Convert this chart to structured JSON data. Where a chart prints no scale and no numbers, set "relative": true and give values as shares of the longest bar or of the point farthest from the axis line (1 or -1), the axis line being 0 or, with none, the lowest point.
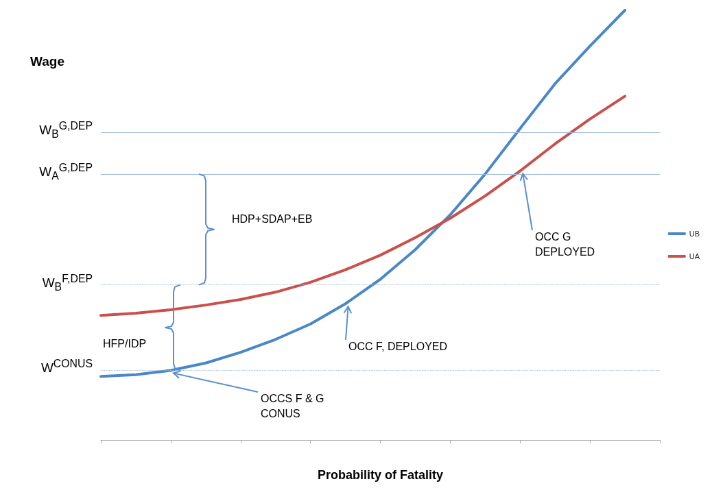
{
  "chart_data": {
    "type": "line",
    "relative": true,
    "xlabel": "Probability of Fatality",
    "ylabel": "Wage",
    "categories": [
      null,
      null,
      null,
      null,
      null,
      null,
      null,
      null,
      null,
      null,
      null,
      null,
      null,
      null,
      null,
      null,
      null
    ],
    "series": [
      {
        "name": "UB",
        "color": "#4a87c9",
        "values": [
          0.148,
          0.152,
          0.162,
          0.179,
          0.204,
          0.234,
          0.27,
          0.317,
          0.374,
          0.443,
          0.524,
          0.619,
          0.725,
          0.829,
          0.917,
          1.0,
          null
        ]
      },
      {
        "name": "UA",
        "color": "#c9504b",
        "values": [
          0.29,
          0.295,
          0.303,
          0.314,
          0.327,
          0.344,
          0.367,
          0.396,
          0.43,
          0.471,
          0.516,
          0.568,
          0.626,
          0.689,
          0.747,
          0.8,
          null
        ]
      }
    ],
    "ref_lines": [
      {
        "axis": "y",
        "value": 0.716,
        "label": "W$_{B}$$^{G,DEP}$",
        "color": "#9dbbdf",
        "line_style": "solid"
      },
      {
        "axis": "y",
        "value": 0.619,
        "label": "W$_{A}$$^{G,DEP}$",
        "color": "#9dbbdf",
        "line_style": "solid"
      },
      {
        "axis": "y",
        "value": 0.361,
        "label": "W$_{B}$$^{F,DEP}$",
        "color": "#9dbbdf",
        "line_style": "dotted"
      },
      {
        "axis": "y",
        "value": 0.162,
        "label": "W$^{CONUS}$",
        "color": "#9dbbdf",
        "line_style": "dotted"
      }
    ],
    "annotations": [
      "HDP+SDAP+EB",
      "HFP/IDP",
      "OCC G DEPLOYED",
      "OCC F, DEPLOYED",
      "OCCS F & G CONUS"
    ],
    "legend": "right",
    "grid": false,
    "marker": "none",
    "line_style": "solid"
  }
}
